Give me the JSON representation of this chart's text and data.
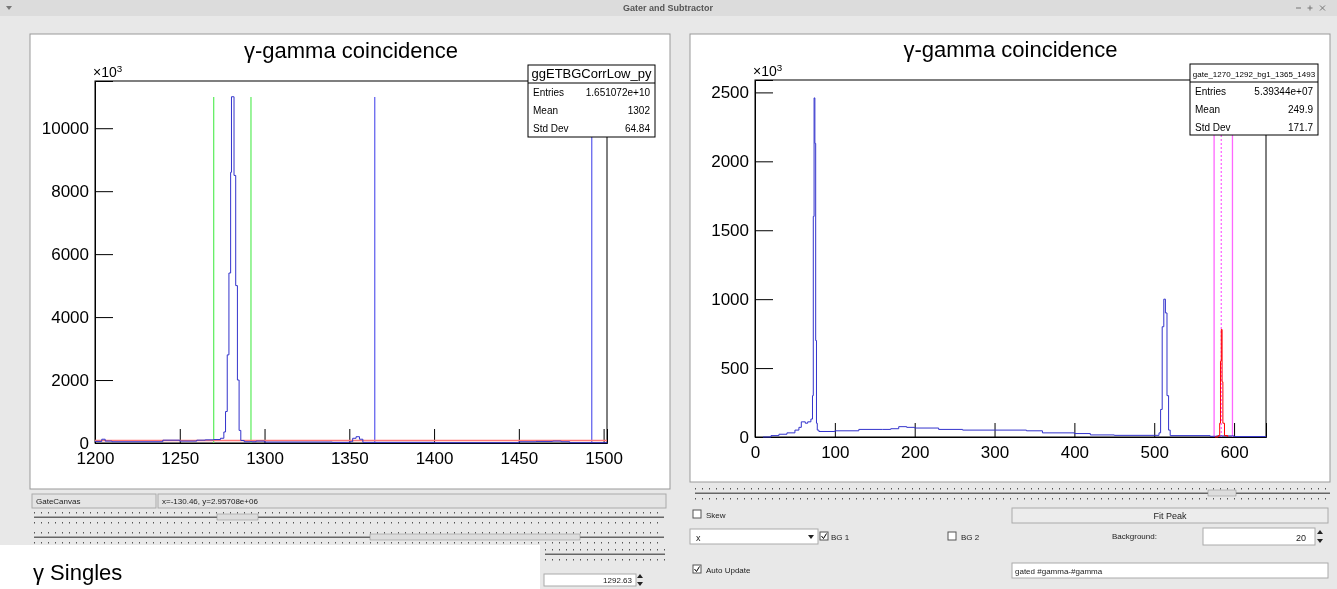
{
  "chart_data": [
    {
      "type": "step",
      "title": "γ-gamma coincidence",
      "ylabel": "×10$^{3}$",
      "xlim": [
        1200,
        1502
      ],
      "ylim": [
        0,
        11500
      ],
      "xticks": [
        1200,
        1250,
        1300,
        1350,
        1400,
        1450,
        1500
      ],
      "yticks": [
        0,
        2000,
        4000,
        6000,
        8000,
        10000
      ],
      "grid": false,
      "series": [
        {
          "color": "#3333cc",
          "x": [
            1200,
            1204,
            1206,
            1210,
            1240,
            1250,
            1260,
            1265,
            1270,
            1274,
            1276,
            1277,
            1278,
            1279,
            1280,
            1280.5,
            1281.5,
            1282,
            1283,
            1284,
            1285,
            1286,
            1288,
            1295,
            1300,
            1340,
            1350,
            1352,
            1354,
            1356,
            1358,
            1400,
            1440,
            1450,
            1460,
            1470,
            1475,
            1480,
            1502
          ],
          "values": [
            50,
            120,
            60,
            40,
            90,
            60,
            90,
            100,
            110,
            150,
            350,
            1000,
            2800,
            5400,
            8600,
            11000,
            11000,
            8500,
            5000,
            2000,
            400,
            80,
            40,
            60,
            30,
            20,
            40,
            150,
            200,
            120,
            20,
            10,
            10,
            40,
            50,
            60,
            40,
            10,
            0
          ]
        }
      ],
      "ref_lines": [
        {
          "axis": "x",
          "value": 1270,
          "color": "#66ee66",
          "line_style": "solid"
        },
        {
          "axis": "x",
          "value": 1292,
          "color": "#66ee66",
          "line_style": "solid"
        },
        {
          "axis": "x",
          "value": 1365,
          "color": "#6666ee",
          "line_style": "solid"
        },
        {
          "axis": "x",
          "value": 1493,
          "color": "#6666ee",
          "line_style": "solid"
        },
        {
          "axis": "y",
          "value": 80,
          "color": "#ff7777",
          "line_style": "solid"
        }
      ],
      "annotations": [
        "ggETBGCorrLow_py",
        "Entries",
        "1.651072e+10",
        "Mean",
        "1302",
        "Std Dev",
        "64.84"
      ]
    },
    {
      "type": "step",
      "title": "γ-gamma coincidence",
      "ylabel": "×10$^{3}$",
      "xlim": [
        0,
        640
      ],
      "ylim": [
        0,
        2590
      ],
      "xticks": [
        0,
        100,
        200,
        300,
        400,
        500,
        600
      ],
      "yticks": [
        0,
        500,
        1000,
        1500,
        2000,
        2500
      ],
      "grid": false,
      "series": [
        {
          "color": "#3333cc",
          "x": [
            10,
            20,
            30,
            40,
            50,
            55,
            58,
            60,
            63,
            66,
            70,
            72,
            73,
            74,
            75,
            76,
            77,
            78,
            80,
            100,
            130,
            160,
            170,
            180,
            190,
            200,
            230,
            260,
            300,
            340,
            360,
            400,
            420,
            450,
            500,
            506,
            508,
            510,
            512,
            514,
            516,
            518,
            520,
            570,
            578,
            600,
            640
          ],
          "values": [
            0,
            10,
            20,
            30,
            50,
            70,
            110,
            110,
            100,
            110,
            130,
            300,
            1600,
            2460,
            2130,
            700,
            100,
            50,
            40,
            45,
            55,
            55,
            60,
            75,
            70,
            65,
            55,
            50,
            50,
            45,
            30,
            25,
            15,
            12,
            12,
            30,
            200,
            800,
            1000,
            900,
            300,
            50,
            10,
            5,
            8,
            3,
            0
          ]
        },
        {
          "color": "#ff0000",
          "x": [
            576,
            580,
            582,
            583,
            584,
            585,
            586,
            588,
            592
          ],
          "values": [
            0,
            10,
            100,
            550,
            780,
            400,
            100,
            10,
            0
          ]
        }
      ],
      "ref_lines": [
        {
          "axis": "x",
          "value": 575,
          "color": "#ff66ff",
          "line_style": "solid"
        },
        {
          "axis": "x",
          "value": 584,
          "color": "#ff66ff",
          "line_style": "dotted"
        },
        {
          "axis": "x",
          "value": 598,
          "color": "#ff66ff",
          "line_style": "solid"
        }
      ],
      "annotations": [
        "gate_1270_1292_bg1_1365_1493",
        "Entries",
        "5.39344e+07",
        "Mean",
        "249.9",
        "Std Dev",
        "171.7"
      ]
    },
    {
      "type": "other",
      "annotations": [
        "Gater and Subtractor",
        "GateCanvas",
        "x=-130.46, y=2.95708e+06",
        "γ Singles",
        "1292.63",
        "Skew",
        "Fit Peak",
        "x",
        "BG 1",
        "BG 2",
        "Background:",
        "20",
        "Auto Update",
        "gated #gamma-#gamma"
      ]
    }
  ]
}
